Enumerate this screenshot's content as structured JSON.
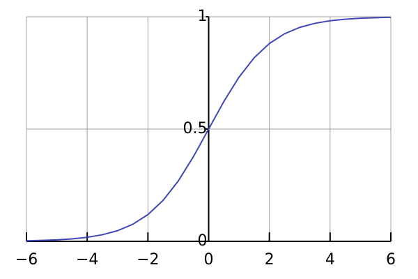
{
  "chart_data": {
    "type": "line",
    "x": [
      -6,
      -5.5,
      -5,
      -4.5,
      -4,
      -3.5,
      -3,
      -2.5,
      -2,
      -1.5,
      -1,
      -0.5,
      0,
      0.5,
      1,
      1.5,
      2,
      2.5,
      3,
      3.5,
      4,
      4.5,
      5,
      5.5,
      6
    ],
    "values": [
      0.0025,
      0.0041,
      0.0067,
      0.011,
      0.018,
      0.0293,
      0.0474,
      0.0759,
      0.1192,
      0.1824,
      0.2689,
      0.3775,
      0.5,
      0.6225,
      0.7311,
      0.8176,
      0.8808,
      0.9241,
      0.9526,
      0.9707,
      0.982,
      0.989,
      0.9933,
      0.9959,
      0.9975
    ],
    "color": "#3f48b8",
    "xlim": [
      -6,
      6
    ],
    "ylim": [
      0,
      1
    ],
    "xticks": [
      {
        "value": -6,
        "label": "−6"
      },
      {
        "value": -4,
        "label": "−4"
      },
      {
        "value": -2,
        "label": "−2"
      },
      0,
      2,
      4,
      6
    ],
    "yticks": [
      0,
      0.5,
      1
    ],
    "grid": true
  }
}
